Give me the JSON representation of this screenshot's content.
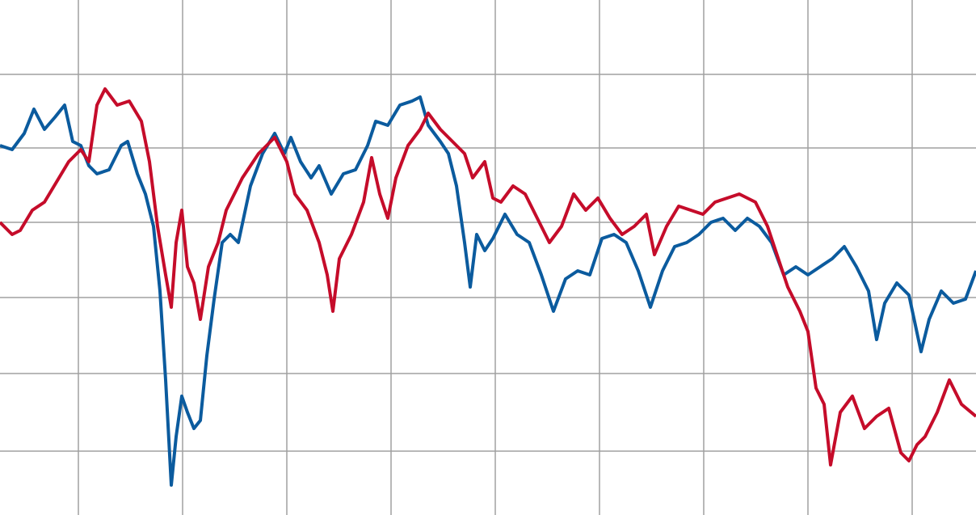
{
  "chart_data": {
    "type": "line",
    "xlim": [
      0,
      1208
    ],
    "xticks": [
      97,
      226,
      355,
      484,
      613,
      742,
      871,
      1000,
      1129
    ],
    "ylim": [
      0,
      637
    ],
    "yticks": [
      79,
      175,
      269,
      362,
      454,
      545
    ],
    "grid": true,
    "series": [
      {
        "color": "#0b5b9e",
        "x": [
          0,
          15,
          30,
          42,
          55,
          68,
          80,
          90,
          100,
          110,
          120,
          135,
          150,
          158,
          170,
          180,
          190,
          198,
          205,
          212,
          218,
          225,
          232,
          240,
          248,
          256,
          265,
          275,
          285,
          295,
          310,
          325,
          340,
          352,
          360,
          372,
          385,
          395,
          410,
          425,
          440,
          455,
          465,
          480,
          495,
          510,
          520,
          530,
          545,
          555,
          565,
          575,
          582,
          590,
          600,
          610,
          625,
          640,
          655,
          670,
          685,
          700,
          715,
          730,
          745,
          760,
          775,
          790,
          805,
          820,
          835,
          850,
          865,
          880,
          895,
          910,
          925,
          940,
          955,
          970,
          985,
          1000,
          1015,
          1030,
          1045,
          1060,
          1075,
          1085,
          1095,
          1110,
          1125,
          1140,
          1150,
          1165,
          1180,
          1195,
          1208
        ],
        "values": [
          457,
          452,
          472,
          502,
          477,
          492,
          507,
          462,
          457,
          432,
          422,
          427,
          457,
          462,
          422,
          397,
          357,
          277,
          167,
          37,
          97,
          147,
          127,
          107,
          117,
          197,
          267,
          337,
          347,
          337,
          407,
          447,
          472,
          447,
          467,
          437,
          417,
          432,
          397,
          422,
          427,
          457,
          487,
          482,
          507,
          512,
          517,
          482,
          462,
          447,
          407,
          337,
          282,
          347,
          327,
          342,
          372,
          347,
          337,
          297,
          252,
          292,
          302,
          297,
          342,
          347,
          337,
          302,
          257,
          302,
          332,
          337,
          347,
          362,
          367,
          352,
          367,
          357,
          337,
          297,
          307,
          297,
          307,
          317,
          332,
          307,
          277,
          217,
          262,
          287,
          272,
          202,
          242,
          277,
          262,
          267,
          302
        ]
      },
      {
        "color": "#c50c2a",
        "x": [
          0,
          15,
          25,
          40,
          55,
          70,
          85,
          100,
          110,
          120,
          130,
          145,
          160,
          175,
          185,
          195,
          205,
          212,
          218,
          225,
          232,
          240,
          248,
          258,
          270,
          280,
          300,
          320,
          340,
          355,
          365,
          380,
          395,
          405,
          412,
          420,
          435,
          450,
          460,
          470,
          480,
          490,
          505,
          520,
          530,
          545,
          560,
          575,
          585,
          600,
          610,
          620,
          635,
          650,
          665,
          680,
          695,
          710,
          725,
          740,
          755,
          770,
          785,
          800,
          810,
          825,
          840,
          855,
          870,
          885,
          900,
          915,
          935,
          950,
          965,
          975,
          990,
          1000,
          1010,
          1020,
          1028,
          1040,
          1055,
          1070,
          1085,
          1100,
          1115,
          1125,
          1135,
          1145,
          1160,
          1175,
          1190,
          1208
        ],
        "values": [
          362,
          347,
          352,
          377,
          387,
          412,
          437,
          452,
          437,
          507,
          527,
          507,
          512,
          487,
          437,
          357,
          297,
          257,
          337,
          377,
          307,
          287,
          242,
          307,
          337,
          377,
          417,
          447,
          467,
          437,
          397,
          377,
          337,
          297,
          252,
          317,
          347,
          387,
          442,
          397,
          367,
          417,
          457,
          477,
          497,
          477,
          462,
          447,
          417,
          437,
          392,
          387,
          407,
          397,
          367,
          337,
          357,
          397,
          377,
          392,
          367,
          347,
          357,
          372,
          322,
          357,
          382,
          377,
          372,
          387,
          392,
          397,
          387,
          357,
          312,
          282,
          252,
          227,
          157,
          137,
          62,
          127,
          147,
          107,
          122,
          132,
          77,
          67,
          87,
          97,
          127,
          167,
          137,
          122
        ]
      }
    ]
  }
}
